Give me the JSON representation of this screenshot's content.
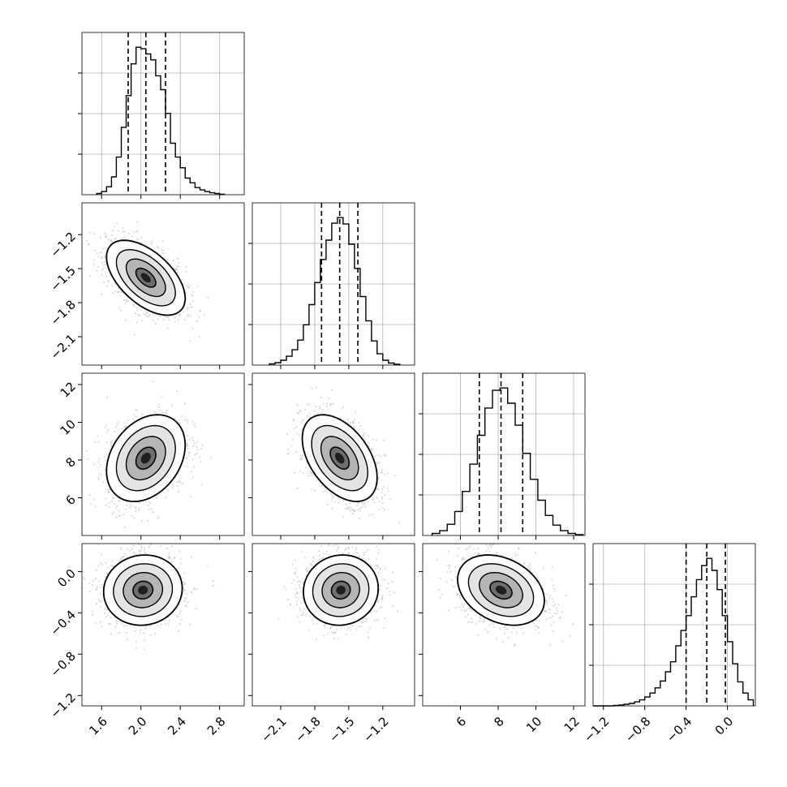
{
  "chart_data": {
    "type": "corner",
    "parameters": 4,
    "colors": {
      "line": "#000000",
      "grid": "#b0b0b0",
      "scatter": "#bdbdbd"
    },
    "grid": true,
    "quantile_lines": "dashed",
    "axes": {
      "p0": {
        "range": [
          1.4,
          3.05
        ],
        "ticks": [
          "1.6",
          "2.0",
          "2.4",
          "2.8"
        ],
        "tick_values": [
          1.6,
          2.0,
          2.4,
          2.8
        ]
      },
      "p1": {
        "range": [
          -2.35,
          -0.92
        ],
        "ticks": [
          "−2.1",
          "−1.8",
          "−1.5",
          "−1.2"
        ],
        "tick_values": [
          -2.1,
          -1.8,
          -1.5,
          -1.2
        ]
      },
      "p2": {
        "range": [
          4.0,
          12.6
        ],
        "ticks": [
          "6",
          "8",
          "10",
          "12"
        ],
        "tick_values": [
          6,
          8,
          10,
          12
        ]
      },
      "p3": {
        "range": [
          -1.3,
          0.27
        ],
        "ticks": [
          "−1.2",
          "−0.8",
          "−0.4",
          "0.0"
        ],
        "tick_values": [
          -1.2,
          -0.8,
          -0.4,
          0.0
        ]
      }
    },
    "marginals": [
      {
        "param": "p0",
        "quantiles": [
          1.87,
          2.05,
          2.25
        ],
        "bins_x": [
          1.55,
          1.6,
          1.65,
          1.7,
          1.75,
          1.8,
          1.85,
          1.9,
          1.95,
          2.0,
          2.05,
          2.1,
          2.15,
          2.2,
          2.25,
          2.3,
          2.35,
          2.4,
          2.45,
          2.5,
          2.55,
          2.6,
          2.65,
          2.7,
          2.75,
          2.8,
          2.85
        ],
        "counts": [
          3,
          8,
          20,
          45,
          95,
          170,
          250,
          330,
          372,
          368,
          355,
          340,
          300,
          265,
          205,
          130,
          95,
          68,
          42,
          30,
          18,
          12,
          8,
          5,
          3,
          1
        ]
      },
      {
        "param": "p1",
        "quantiles": [
          -1.74,
          -1.58,
          -1.42
        ],
        "bins_x": [
          -2.2,
          -2.15,
          -2.1,
          -2.05,
          -2.0,
          -1.95,
          -1.9,
          -1.85,
          -1.8,
          -1.75,
          -1.7,
          -1.65,
          -1.6,
          -1.55,
          -1.5,
          -1.45,
          -1.4,
          -1.35,
          -1.3,
          -1.25,
          -1.2,
          -1.15,
          -1.1,
          -1.05
        ],
        "counts": [
          3,
          6,
          12,
          22,
          38,
          62,
          100,
          150,
          205,
          262,
          310,
          352,
          366,
          350,
          300,
          240,
          170,
          110,
          60,
          28,
          12,
          5,
          2
        ]
      },
      {
        "param": "p2",
        "quantiles": [
          7.0,
          8.15,
          9.3
        ],
        "bins_x": [
          4.5,
          4.9,
          5.3,
          5.7,
          6.1,
          6.5,
          6.9,
          7.3,
          7.7,
          8.1,
          8.5,
          8.9,
          9.3,
          9.7,
          10.1,
          10.5,
          10.9,
          11.3,
          11.7,
          12.1,
          12.5
        ],
        "counts": [
          5,
          12,
          28,
          60,
          110,
          178,
          250,
          318,
          362,
          368,
          330,
          275,
          205,
          140,
          88,
          50,
          26,
          12,
          5,
          2
        ]
      },
      {
        "param": "p3",
        "quantiles": [
          -0.4,
          -0.2,
          -0.02
        ],
        "bins_x": [
          -1.3,
          -1.25,
          -1.2,
          -1.15,
          -1.1,
          -1.05,
          -1.0,
          -0.95,
          -0.9,
          -0.85,
          -0.8,
          -0.75,
          -0.7,
          -0.65,
          -0.6,
          -0.55,
          -0.5,
          -0.45,
          -0.4,
          -0.35,
          -0.3,
          -0.25,
          -0.2,
          -0.15,
          -0.1,
          -0.05,
          0.0,
          0.05,
          0.1,
          0.15,
          0.2,
          0.25
        ],
        "counts": [
          0,
          0,
          0,
          0,
          1,
          2,
          4,
          6,
          10,
          15,
          22,
          32,
          45,
          62,
          85,
          110,
          150,
          188,
          225,
          272,
          315,
          350,
          368,
          338,
          290,
          225,
          160,
          105,
          60,
          32,
          15
        ]
      }
    ],
    "joints": [
      {
        "x": "p0",
        "y": "p1",
        "center": [
          2.05,
          -1.58
        ],
        "sd": [
          0.2,
          0.165
        ],
        "rho": -0.55
      },
      {
        "x": "p0",
        "y": "p2",
        "center": [
          2.05,
          8.1
        ],
        "sd": [
          0.2,
          1.15
        ],
        "rho": 0.3
      },
      {
        "x": "p1",
        "y": "p2",
        "center": [
          -1.58,
          8.1
        ],
        "sd": [
          0.165,
          1.15
        ],
        "rho": -0.45
      },
      {
        "x": "p0",
        "y": "p3",
        "center": [
          2.02,
          -0.18
        ],
        "sd": [
          0.2,
          0.17
        ],
        "rho": 0.05
      },
      {
        "x": "p1",
        "y": "p3",
        "center": [
          -1.57,
          -0.18
        ],
        "sd": [
          0.165,
          0.17
        ],
        "rho": 0.05
      },
      {
        "x": "p2",
        "y": "p3",
        "center": [
          8.15,
          -0.18
        ],
        "sd": [
          1.15,
          0.17
        ],
        "rho": -0.3
      }
    ]
  }
}
